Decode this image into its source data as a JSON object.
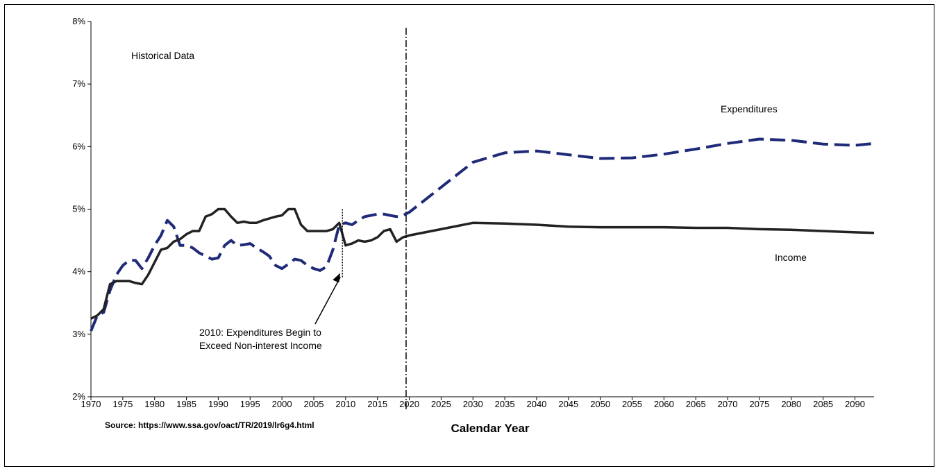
{
  "chart_data": {
    "type": "line",
    "xlabel": "Calendar Year",
    "ylabel": "",
    "xlim": [
      1970,
      2093
    ],
    "ylim": [
      2,
      8
    ],
    "x_ticks": [
      "1970",
      "1975",
      "1980",
      "1985",
      "1990",
      "1995",
      "2000",
      "2005",
      "2010",
      "2015",
      "2020",
      "2025",
      "2030",
      "2035",
      "2040",
      "2045",
      "2050",
      "2055",
      "2060",
      "2065",
      "2070",
      "2075",
      "2080",
      "2085",
      "2090"
    ],
    "y_ticks": [
      "2%",
      "3%",
      "4%",
      "5%",
      "6%",
      "7%",
      "8%"
    ],
    "series": [
      {
        "name": "Expenditures",
        "color": "#1f2a78",
        "dash": "dashed",
        "x": [
          1970,
          1971,
          1972,
          1973,
          1974,
          1975,
          1976,
          1977,
          1978,
          1979,
          1980,
          1981,
          1982,
          1983,
          1984,
          1985,
          1986,
          1987,
          1988,
          1989,
          1990,
          1991,
          1992,
          1993,
          1994,
          1995,
          1996,
          1997,
          1998,
          1999,
          2000,
          2001,
          2002,
          2003,
          2004,
          2005,
          2006,
          2007,
          2008,
          2009,
          2010,
          2011,
          2012,
          2013,
          2014,
          2015,
          2016,
          2017,
          2018,
          2019,
          2020,
          2025,
          2030,
          2035,
          2040,
          2045,
          2050,
          2055,
          2060,
          2065,
          2070,
          2075,
          2080,
          2085,
          2090,
          2093
        ],
        "values": [
          3.05,
          3.3,
          3.35,
          3.7,
          3.95,
          4.1,
          4.18,
          4.18,
          4.05,
          4.22,
          4.42,
          4.58,
          4.82,
          4.72,
          4.42,
          4.42,
          4.38,
          4.3,
          4.25,
          4.2,
          4.22,
          4.42,
          4.5,
          4.42,
          4.43,
          4.45,
          4.38,
          4.32,
          4.25,
          4.1,
          4.05,
          4.12,
          4.2,
          4.18,
          4.1,
          4.05,
          4.02,
          4.08,
          4.35,
          4.75,
          4.78,
          4.75,
          4.82,
          4.88,
          4.9,
          4.92,
          4.92,
          4.9,
          4.88,
          4.9,
          4.95,
          5.35,
          5.75,
          5.9,
          5.93,
          5.87,
          5.81,
          5.82,
          5.88,
          5.96,
          6.05,
          6.12,
          6.1,
          6.04,
          6.02,
          6.05
        ]
      },
      {
        "name": "Income",
        "color": "#222222",
        "dash": "solid",
        "x": [
          1970,
          1971,
          1972,
          1973,
          1974,
          1975,
          1976,
          1977,
          1978,
          1979,
          1980,
          1981,
          1982,
          1983,
          1984,
          1985,
          1986,
          1987,
          1988,
          1989,
          1990,
          1991,
          1992,
          1993,
          1994,
          1995,
          1996,
          1997,
          1998,
          1999,
          2000,
          2001,
          2002,
          2003,
          2004,
          2005,
          2006,
          2007,
          2008,
          2009,
          2010,
          2011,
          2012,
          2013,
          2014,
          2015,
          2016,
          2017,
          2018,
          2019,
          2020,
          2025,
          2030,
          2035,
          2040,
          2045,
          2050,
          2055,
          2060,
          2065,
          2070,
          2075,
          2080,
          2085,
          2090,
          2093
        ],
        "values": [
          3.25,
          3.3,
          3.4,
          3.8,
          3.85,
          3.85,
          3.85,
          3.82,
          3.8,
          3.95,
          4.15,
          4.35,
          4.38,
          4.48,
          4.52,
          4.6,
          4.65,
          4.65,
          4.88,
          4.92,
          5.0,
          5.0,
          4.88,
          4.78,
          4.8,
          4.78,
          4.78,
          4.82,
          4.85,
          4.88,
          4.9,
          5.0,
          5.0,
          4.75,
          4.65,
          4.65,
          4.65,
          4.65,
          4.68,
          4.78,
          4.42,
          4.45,
          4.5,
          4.48,
          4.5,
          4.55,
          4.65,
          4.68,
          4.48,
          4.55,
          4.58,
          4.68,
          4.78,
          4.77,
          4.75,
          4.72,
          4.71,
          4.71,
          4.71,
          4.7,
          4.7,
          4.68,
          4.67,
          4.65,
          4.63,
          4.62
        ]
      }
    ],
    "annotations": {
      "historical": "Historical Data",
      "expenditures_label": "Expenditures",
      "income_label": "Income",
      "note_line1": "2010: Expenditures Begin to",
      "note_line2": "Exceed Non-interest Income",
      "source": "Source: https://www.ssa.gov/oact/TR/2019/lr6g4.html"
    },
    "markers": {
      "historical_divider_year": 2019.5,
      "note_year": 2009.5
    }
  }
}
